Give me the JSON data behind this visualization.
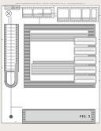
{
  "bg_color": "#eeebe6",
  "header_color": "#888888",
  "line_color": "#606060",
  "white": "#ffffff",
  "light_gray": "#d8d8d8",
  "med_gray": "#b8b8b8",
  "dark_gray": "#909090",
  "hatch_gray": "#c0c0c0",
  "fig_label": "FIG. 1",
  "header": "Patent Application Publication   May 23, 2006  Sheet 1 of 11   US 2006/0096084 A1"
}
